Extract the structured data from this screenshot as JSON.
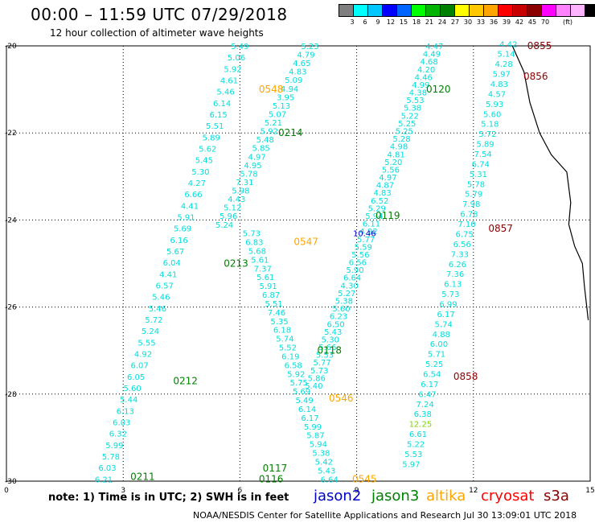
{
  "header": {
    "title": "00:00 – 11:59 UTC 07/29/2018",
    "subtitle": "12 hour collection of altimeter wave heights"
  },
  "colorbar": {
    "colors": [
      "#7f7f7f",
      "#00ffff",
      "#00c8ff",
      "#0000ff",
      "#0064ff",
      "#00ff00",
      "#00b400",
      "#008000",
      "#ffff00",
      "#ffc800",
      "#ffa500",
      "#ff0000",
      "#c80000",
      "#8b0000",
      "#ff00ff",
      "#ff82ff",
      "#ffb4ff",
      "#000000"
    ],
    "labels": [
      "3",
      "6",
      "9",
      "12",
      "15",
      "18",
      "21",
      "24",
      "27",
      "30",
      "33",
      "36",
      "39",
      "42",
      "45",
      "70"
    ],
    "unit": "(ft)"
  },
  "axes": {
    "x_ticks": [
      "0",
      "3",
      "6",
      "9",
      "12",
      "15"
    ],
    "y_ticks": [
      "-20",
      "-22",
      "-24",
      "-26",
      "-28",
      "-30"
    ]
  },
  "notes": "note:  1) Time is in UTC;  2) SWH is in feet",
  "legend": [
    {
      "label": "jason2",
      "color": "#0000cc"
    },
    {
      "label": "jason3",
      "color": "#008000"
    },
    {
      "label": "altika",
      "color": "#ffa500"
    },
    {
      "label": "cryosat",
      "color": "#ff0000"
    },
    {
      "label": "s3a",
      "color": "#8b0000"
    }
  ],
  "footer": "NOAA/NESDIS Center for Satellite Applications and Research     Jul 30 13:09:01 UTC 2018",
  "time_labels": [
    {
      "text": "0855",
      "color": "#8b0000",
      "lon": 13.7,
      "lat": -20.0
    },
    {
      "text": "0856",
      "color": "#8b0000",
      "lon": 13.6,
      "lat": -20.7
    },
    {
      "text": "0857",
      "color": "#8b0000",
      "lon": 12.7,
      "lat": -24.2
    },
    {
      "text": "0858",
      "color": "#8b0000",
      "lon": 11.8,
      "lat": -27.6
    },
    {
      "text": "0548",
      "color": "#ffa500",
      "lon": 6.8,
      "lat": -21.0
    },
    {
      "text": "0547",
      "color": "#ffa500",
      "lon": 7.7,
      "lat": -24.5
    },
    {
      "text": "0546",
      "color": "#ffa500",
      "lon": 8.6,
      "lat": -28.1
    },
    {
      "text": "0545",
      "color": "#ffa500",
      "lon": 9.2,
      "lat": -29.95
    },
    {
      "text": "0214",
      "color": "#008000",
      "lon": 7.3,
      "lat": -22.0
    },
    {
      "text": "0213",
      "color": "#008000",
      "lon": 5.9,
      "lat": -25.0
    },
    {
      "text": "0212",
      "color": "#008000",
      "lon": 4.6,
      "lat": -27.7
    },
    {
      "text": "0211",
      "color": "#008000",
      "lon": 3.5,
      "lat": -29.9
    },
    {
      "text": "0120",
      "color": "#008000",
      "lon": 11.1,
      "lat": -21.0
    },
    {
      "text": "0119",
      "color": "#008000",
      "lon": 9.8,
      "lat": -23.9
    },
    {
      "text": "0118",
      "color": "#008000",
      "lon": 8.3,
      "lat": -27.0
    },
    {
      "text": "0117",
      "color": "#008000",
      "lon": 6.9,
      "lat": -29.7
    },
    {
      "text": "0116",
      "color": "#008000",
      "lon": 6.8,
      "lat": -29.95
    }
  ],
  "tracks": [
    {
      "name": "track-s3a",
      "color": "#00dede",
      "lon_start": 12.9,
      "lat_start": -19.95,
      "lon_end": 10.4,
      "lat_end": -29.6,
      "values": [
        "4.42",
        "5.14",
        "4.28",
        "5.97",
        "4.83",
        "4.57",
        "5.93",
        "5.60",
        "5.18",
        "5.72",
        "5.89",
        "7.54",
        "6.74",
        "5.31",
        "5.78",
        "5.79",
        "7.98",
        "6.78",
        "7.10",
        "6.75",
        "6.56",
        "7.33",
        "6.26",
        "7.36",
        "6.13",
        "5.73",
        "6.99",
        "6.17",
        "5.74",
        "4.88",
        "6.00",
        "5.71",
        "5.25",
        "6.54",
        "6.17",
        "6.47",
        "7.24",
        "6.38",
        "12.25",
        "6.61",
        "5.22",
        "5.53",
        "5.97"
      ]
    },
    {
      "name": "track-altika",
      "color": "#00dede",
      "lon_start": 7.8,
      "lat_start": -20.0,
      "lon_end": 5.6,
      "lat_end": -24.1,
      "values": [
        "5.23",
        "4.79",
        "4.65",
        "4.83",
        "5.09",
        "4.94",
        "3.95",
        "5.13",
        "5.07",
        "5.21",
        "5.92",
        "5.48",
        "5.85",
        "4.97",
        "4.95",
        "5.78",
        "7.31",
        "5.98",
        "4.43",
        "5.12",
        "5.96",
        "5.24"
      ]
    },
    {
      "name": "track-altika-south",
      "color": "#00dede",
      "lon_start": 6.3,
      "lat_start": -24.3,
      "lon_end": 8.3,
      "lat_end": -29.95,
      "values": [
        "5.73",
        "6.83",
        "5.68",
        "5.61",
        "7.37",
        "5.61",
        "5.91",
        "6.87",
        "5.51",
        "7.46",
        "5.35",
        "6.18",
        "5.74",
        "5.52",
        "6.19",
        "6.58",
        "5.92",
        "5.75",
        "5.69",
        "5.49",
        "6.14",
        "6.17",
        "5.99",
        "5.87",
        "5.94",
        "5.38",
        "5.42",
        "5.43",
        "6.64"
      ]
    },
    {
      "name": "track-jason3-a",
      "color": "#00dede",
      "lon_start": 6.0,
      "lat_start": -20.0,
      "lon_end": 2.5,
      "lat_end": -29.95,
      "values": [
        "5.49",
        "5.06",
        "5.92",
        "4.61",
        "5.46",
        "6.14",
        "6.15",
        "5.51",
        "5.89",
        "5.62",
        "5.45",
        "5.30",
        "4.27",
        "6.66",
        "4.41",
        "5.91",
        "5.69",
        "6.16",
        "5.67",
        "6.04",
        "4.41",
        "6.57",
        "5.46",
        "5.46",
        "5.72",
        "5.24",
        "5.55",
        "4.92",
        "6.07",
        "6.05",
        "5.60",
        "5.44",
        "6.13",
        "6.03",
        "6.32",
        "5.99",
        "5.78",
        "6.03",
        "6.21"
      ]
    },
    {
      "name": "track-jason3-b",
      "color": "#00dede",
      "lon_start": 11.0,
      "lat_start": -20.0,
      "lon_end": 7.9,
      "lat_end": -27.8,
      "values": [
        "4.47",
        "4.49",
        "4.68",
        "4.20",
        "4.46",
        "4.99",
        "4.38",
        "5.53",
        "5.38",
        "5.22",
        "5.25",
        "5.25",
        "5.28",
        "4.98",
        "4.81",
        "5.20",
        "5.56",
        "4.97",
        "4.87",
        "4.83",
        "6.52",
        "5.29",
        "5.94",
        "6.11",
        "4.92",
        "5.77",
        "5.59",
        "5.56",
        "6.56",
        "5.90",
        "6.64",
        "4.30",
        "5.27",
        "5.38",
        "5.60",
        "6.23",
        "6.50",
        "5.43",
        "5.30",
        "5.66",
        "5.53",
        "5.77",
        "5.73",
        "5.86",
        "5.40"
      ]
    },
    {
      "name": "track-jason2",
      "color": "#0000cc",
      "lon_start": 9.2,
      "lat_start": -24.3,
      "lon_end": 9.2,
      "lat_end": -24.3,
      "values": [
        "10.46"
      ]
    }
  ]
}
